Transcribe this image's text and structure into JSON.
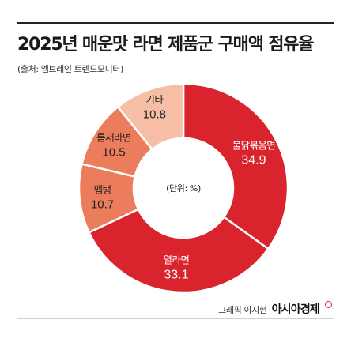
{
  "header": {
    "title": "2025년 매운맛 라면 제품군 구매액 점유율",
    "source": "(출처: 엠브레인 트렌드모니터)"
  },
  "footer": {
    "credit": "그래픽 이지현",
    "brand": "아시아경제"
  },
  "chart_data": {
    "type": "pie",
    "variant": "donut",
    "title": "2025년 매운맛 라면 제품군 구매액 점유율",
    "center_label": "(단위: %)",
    "unit": "%",
    "categories": [
      "불닭볶음면",
      "열라면",
      "맵탱",
      "틈새라면",
      "기타"
    ],
    "values": [
      34.9,
      33.1,
      10.7,
      10.5,
      10.8
    ],
    "value_labels": [
      "34.9",
      "33.1",
      "10.7",
      "10.5",
      "10.8"
    ],
    "colors": [
      "#d9232d",
      "#d9232d",
      "#ec7d5c",
      "#ec7d5c",
      "#f5bea5"
    ],
    "start": "top, clockwise"
  }
}
